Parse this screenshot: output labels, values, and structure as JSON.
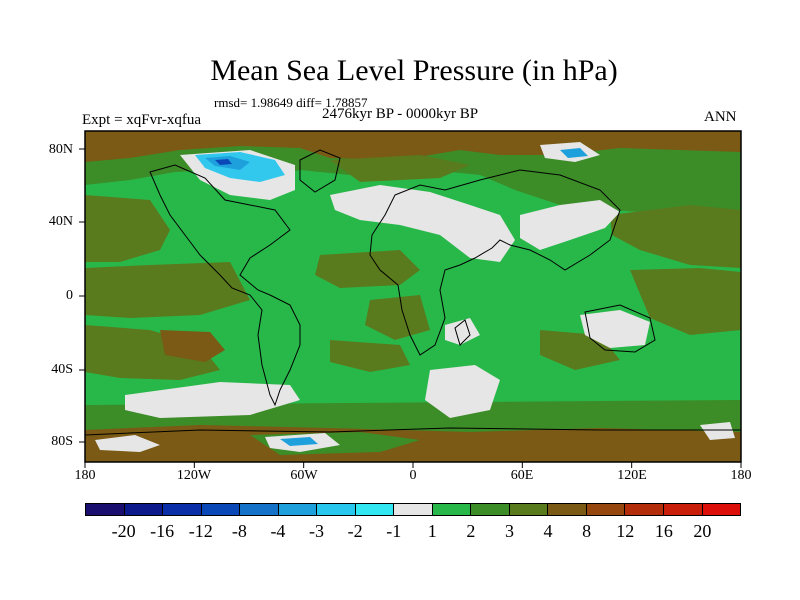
{
  "title": "Mean Sea Level Pressure (in hPa)",
  "stats": "rmsd= 1.98649 diff= 1.78857",
  "period": "2476kyr BP - 0000kyr BP",
  "experiment": "Expt = xqFvr-xqfua",
  "season": "ANN",
  "lat_labels": [
    "80N",
    "40N",
    "0",
    "40S",
    "80S"
  ],
  "lon_labels": [
    "180",
    "120W",
    "60W",
    "0",
    "60E",
    "120E",
    "180"
  ],
  "colorbar": {
    "labels": [
      "-20",
      "-16",
      "-12",
      "-8",
      "-4",
      "-3",
      "-2",
      "-1",
      "1",
      "2",
      "3",
      "4",
      "8",
      "12",
      "16",
      "20"
    ],
    "colors": [
      "#1a0f6e",
      "#0d1a8c",
      "#0a2ea8",
      "#0a48b8",
      "#1473c8",
      "#1ea0dc",
      "#28c8ee",
      "#32e6f2",
      "#e6e6e6",
      "#28b84a",
      "#3c8c28",
      "#5a7a1e",
      "#7a5a14",
      "#96460f",
      "#b42d0a",
      "#c81e0a",
      "#dc0f0a"
    ]
  },
  "map_colors": {
    "light_green": "#28b84a",
    "dark_green": "#3c8c28",
    "olive": "#5a7a1e",
    "brown": "#7a5a14",
    "white": "#e6e6e6",
    "cyan": "#32c8ee",
    "blue": "#1ea0dc",
    "navy": "#0a48b8"
  }
}
